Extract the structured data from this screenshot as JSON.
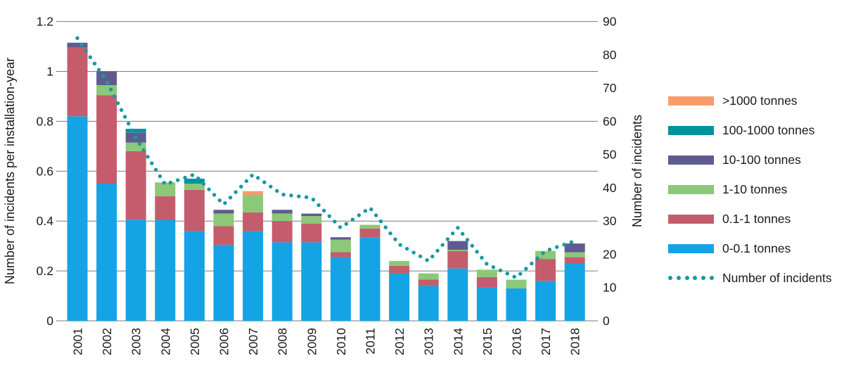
{
  "colors": {
    "blue": "#14A3E4",
    "rose": "#C55C6C",
    "green": "#8BC878",
    "purple": "#5E5C8F",
    "teal": "#00939F",
    "orange": "#F89C6D",
    "line": "#1798A4",
    "grid": "#7a7a7a",
    "text": "#1a1a1a"
  },
  "chart_data": {
    "type": "stacked-bar + dotted-line combo",
    "title": "",
    "years": [
      "2001",
      "2002",
      "2003",
      "2004",
      "2005",
      "2006",
      "2007",
      "2008",
      "2009",
      "2010",
      "2011",
      "2012",
      "2013",
      "2014",
      "2015",
      "2016",
      "2017",
      "2018"
    ],
    "left_axis": {
      "title": "Number of incidents per installation-year",
      "tick_labels": [
        "1.2",
        "1",
        "0.8",
        "0.6",
        "0.4",
        "0.2",
        "0"
      ],
      "tick_values": [
        1.2,
        1,
        0.8,
        0.6,
        0.4,
        0.2,
        0
      ],
      "min": 0,
      "max": 1.2,
      "grid": true
    },
    "right_axis": {
      "title": "Number of incidents",
      "tick_labels": [
        "90",
        "80",
        "70",
        "60",
        "50",
        "40",
        "30",
        "20",
        "10",
        "0"
      ],
      "tick_values": [
        90,
        80,
        70,
        60,
        50,
        40,
        30,
        20,
        10,
        0
      ],
      "min": 0,
      "max": 90
    },
    "series": [
      {
        "name": "0-0.1 tonnes",
        "color_key": "blue",
        "values": [
          0.82,
          0.55,
          0.405,
          0.405,
          0.36,
          0.305,
          0.36,
          0.315,
          0.315,
          0.255,
          0.335,
          0.19,
          0.14,
          0.21,
          0.135,
          0.13,
          0.16,
          0.23
        ]
      },
      {
        "name": "0.1-1 tonnes",
        "color_key": "rose",
        "values": [
          0.275,
          0.355,
          0.275,
          0.095,
          0.165,
          0.075,
          0.075,
          0.085,
          0.075,
          0.02,
          0.035,
          0.03,
          0.025,
          0.07,
          0.04,
          0,
          0.088,
          0.025
        ]
      },
      {
        "name": "1-10 tonnes",
        "color_key": "green",
        "values": [
          0,
          0.04,
          0.035,
          0.055,
          0.025,
          0.05,
          0.07,
          0.03,
          0.03,
          0.05,
          0.015,
          0.02,
          0.025,
          0.005,
          0.03,
          0.035,
          0.032,
          0.02
        ]
      },
      {
        "name": "10-100 tonnes",
        "color_key": "purple",
        "values": [
          0.02,
          0.055,
          0.04,
          0,
          0,
          0.015,
          0,
          0.015,
          0.01,
          0.01,
          0,
          0,
          0,
          0.035,
          0,
          0,
          0,
          0.035
        ]
      },
      {
        "name": "100-1000 tonnes",
        "color_key": "teal",
        "values": [
          0,
          0,
          0.015,
          0,
          0.02,
          0,
          0,
          0,
          0,
          0,
          0,
          0,
          0,
          0,
          0,
          0,
          0,
          0
        ]
      },
      {
        "name": ">1000 tonnes",
        "color_key": "orange",
        "values": [
          0,
          0,
          0,
          0,
          0,
          0,
          0.015,
          0,
          0,
          0,
          0,
          0,
          0,
          0,
          0,
          0,
          0,
          0
        ]
      }
    ],
    "line": {
      "name": "Number of incidents",
      "color_key": "line",
      "values": [
        85,
        72,
        55,
        41,
        44,
        35,
        44,
        38,
        37,
        28,
        34,
        23,
        18,
        28,
        17,
        13,
        21,
        24
      ]
    }
  },
  "legend": {
    "items": [
      {
        "label": ">1000 tonnes",
        "type": "swatch",
        "color_key": "orange"
      },
      {
        "label": "100-1000 tonnes",
        "type": "swatch",
        "color_key": "teal"
      },
      {
        "label": "10-100 tonnes",
        "type": "swatch",
        "color_key": "purple"
      },
      {
        "label": "1-10 tonnes",
        "type": "swatch",
        "color_key": "green"
      },
      {
        "label": "0.1-1 tonnes",
        "type": "swatch",
        "color_key": "rose"
      },
      {
        "label": "0-0.1 tonnes",
        "type": "swatch",
        "color_key": "blue"
      },
      {
        "label": "Number of incidents",
        "type": "dots",
        "color_key": "line"
      }
    ]
  }
}
